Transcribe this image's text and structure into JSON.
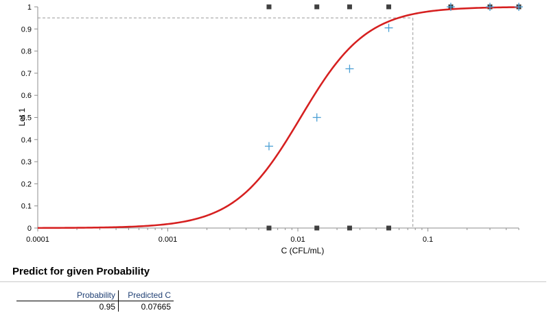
{
  "chart_data": {
    "type": "scatter",
    "title": "",
    "xlabel": "C (CFL/mL)",
    "ylabel": "Lot 1",
    "x_scale": "log",
    "xlim": [
      0.0001,
      0.5
    ],
    "ylim": [
      0,
      1
    ],
    "x_ticks": [
      0.0001,
      0.001,
      0.01,
      0.1
    ],
    "x_tick_labels": [
      "0.0001",
      "0.001",
      "0.01",
      "0.1"
    ],
    "y_ticks": [
      0,
      0.1,
      0.2,
      0.3,
      0.4,
      0.5,
      0.6,
      0.7,
      0.8,
      0.9,
      1
    ],
    "y_tick_labels": [
      "0",
      "0.1",
      "0.2",
      "0.3",
      "0.4",
      "0.5",
      "0.6",
      "0.7",
      "0.8",
      "0.9",
      "1"
    ],
    "grid": false,
    "series": [
      {
        "kind": "fitted-curve",
        "color": "#d62020",
        "ec50": 0.0105,
        "slope": 1.7,
        "x_range": [
          0.0001,
          0.5
        ]
      },
      {
        "kind": "observed-proportion",
        "marker": "plus",
        "color": "#4a9fd4",
        "x": [
          0.006,
          0.014,
          0.025,
          0.05,
          0.15,
          0.3,
          0.5
        ],
        "y": [
          0.37,
          0.5,
          0.72,
          0.905,
          1.0,
          1.0,
          1.0
        ]
      },
      {
        "kind": "individual-results",
        "marker": "square",
        "color": "#404040",
        "points": [
          [
            0.006,
            1
          ],
          [
            0.014,
            1
          ],
          [
            0.025,
            1
          ],
          [
            0.05,
            1
          ],
          [
            0.15,
            1
          ],
          [
            0.3,
            1
          ],
          [
            0.5,
            1
          ],
          [
            0.006,
            0
          ],
          [
            0.014,
            0
          ],
          [
            0.025,
            0
          ],
          [
            0.05,
            0
          ]
        ]
      }
    ],
    "reference_lines": {
      "color": "#999999",
      "probability": 0.95,
      "predicted_c": 0.07665
    }
  },
  "prediction": {
    "title": "Predict for given Probability",
    "col_probability": "Probability",
    "col_predicted": "Predicted C",
    "probability": "0.95",
    "predicted_c": "0.07665"
  }
}
